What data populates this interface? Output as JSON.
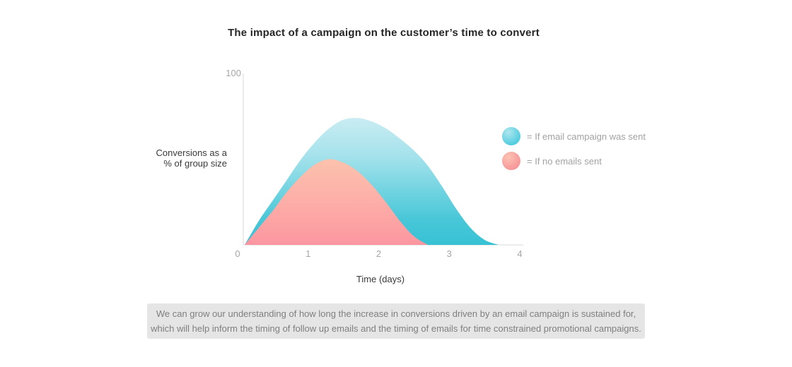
{
  "page": {
    "title": "The impact of a campaign on the customer’s time to convert"
  },
  "y_axis": {
    "tick_label": "100",
    "label_lines": [
      "Conversions as a",
      "% of group size"
    ]
  },
  "x_axis": {
    "label": "Time (days)"
  },
  "legend": {
    "items": [
      {
        "label": "= If email campaign was sent",
        "dot_light": "#aee6ef",
        "dot_base": "#52cddf"
      },
      {
        "label": "= If no emails sent",
        "dot_light": "#fcc3b3",
        "dot_base": "#f79799"
      }
    ]
  },
  "footer": {
    "line1": "We can grow our understanding of how long the increase in conversions driven by an email campaign is sustained for,",
    "line2": "which will help inform the timing of follow up emails and the timing of emails for time constrained promotional campaigns."
  },
  "colors": {
    "axis_line": "#d9d9d9",
    "tick_text": "#a6a6a6",
    "teal_accent": "#37c2d4",
    "pink_accent": "#fb96a0",
    "footer_bg": "#e5e5e5"
  },
  "chart_data": {
    "type": "area",
    "title": "The impact of a campaign on the customer’s time to convert",
    "xlabel": "Time (days)",
    "ylabel": "Conversions as a % of group size",
    "xlim": [
      0,
      4
    ],
    "ylim": [
      0,
      100
    ],
    "x_ticks": [
      0,
      1,
      2,
      3,
      4
    ],
    "y_ticks": [
      100
    ],
    "grid": false,
    "legend_position": "right",
    "series": [
      {
        "name": "If email campaign was sent",
        "x": [
          0.1,
          0.3,
          0.5,
          0.7,
          0.9,
          1.1,
          1.3,
          1.5,
          1.7,
          1.9,
          2.1,
          2.3,
          2.5,
          2.7,
          2.9,
          3.1,
          3.3,
          3.5,
          3.7
        ],
        "y": [
          0,
          14,
          26,
          38,
          50,
          60,
          68,
          73,
          74,
          72,
          68,
          62,
          55,
          46,
          34,
          21,
          10,
          3,
          0
        ],
        "gradient": [
          {
            "offset": 0,
            "color": "#c9ecf2"
          },
          {
            "offset": 0.3,
            "color": "#a5e2ec"
          },
          {
            "offset": 0.55,
            "color": "#76d5e1"
          },
          {
            "offset": 0.8,
            "color": "#48c7d8"
          },
          {
            "offset": 1,
            "color": "#37c2d4"
          }
        ]
      },
      {
        "name": "If no emails sent",
        "x": [
          0.1,
          0.3,
          0.5,
          0.7,
          0.9,
          1.1,
          1.3,
          1.5,
          1.7,
          1.9,
          2.1,
          2.3,
          2.5,
          2.7
        ],
        "y": [
          0,
          10,
          20,
          31,
          40,
          47,
          50,
          48,
          43,
          35,
          25,
          14,
          5,
          0
        ],
        "gradient": [
          {
            "offset": 0,
            "color": "#fcc2ad"
          },
          {
            "offset": 0.4,
            "color": "#fdb2a9"
          },
          {
            "offset": 0.7,
            "color": "#fda5a5"
          },
          {
            "offset": 1,
            "color": "#fb96a0"
          }
        ]
      }
    ]
  }
}
